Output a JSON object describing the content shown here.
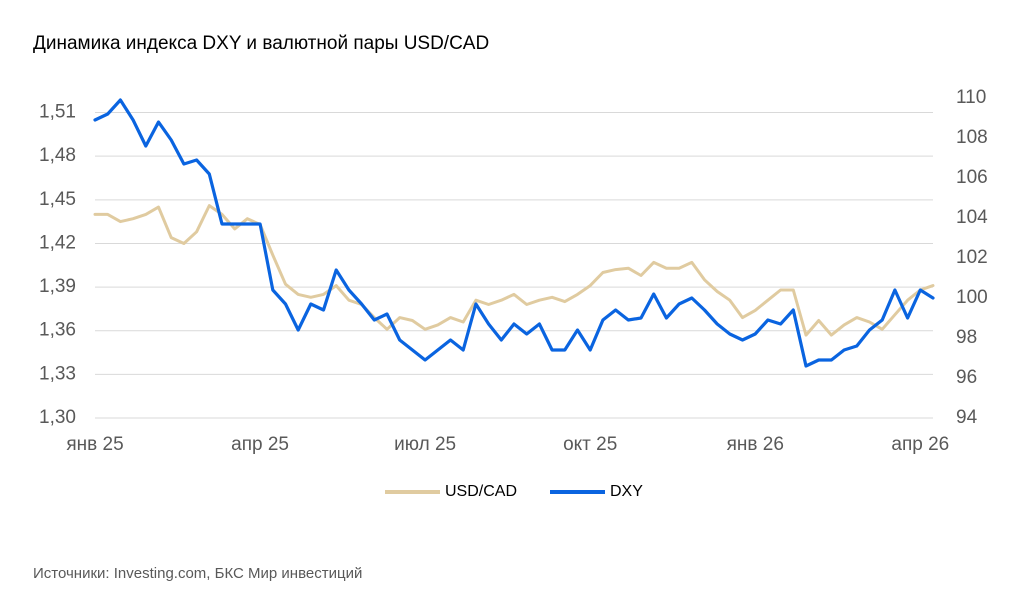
{
  "chart_data": {
    "type": "line",
    "title": "Динамика индекса DXY и валютной пары USD/CAD",
    "source": "Источники: Investing.com, БКС Мир инвестиций",
    "categories": [
      "янв 25",
      null,
      null,
      null,
      null,
      null,
      null,
      null,
      null,
      null,
      null,
      null,
      null,
      "апр 25",
      null,
      null,
      null,
      null,
      null,
      null,
      null,
      null,
      null,
      null,
      null,
      null,
      "июл 25",
      null,
      null,
      null,
      null,
      null,
      null,
      null,
      null,
      null,
      null,
      null,
      null,
      "окт 25",
      null,
      null,
      null,
      null,
      null,
      null,
      null,
      null,
      null,
      null,
      null,
      null,
      "янв 26",
      null,
      null,
      null,
      null,
      null,
      null,
      null,
      null,
      null,
      null,
      null,
      null,
      "апр 26",
      null
    ],
    "series": [
      {
        "name": "USD/CAD",
        "color": "#e0cba0",
        "axis": "y",
        "values": [
          1.44,
          1.44,
          1.435,
          1.437,
          1.44,
          1.445,
          1.424,
          1.42,
          1.428,
          1.446,
          1.44,
          1.43,
          1.437,
          1.433,
          1.412,
          1.392,
          1.385,
          1.383,
          1.385,
          1.391,
          1.381,
          1.378,
          1.369,
          1.361,
          1.369,
          1.367,
          1.361,
          1.364,
          1.369,
          1.366,
          1.381,
          1.378,
          1.381,
          1.385,
          1.378,
          1.381,
          1.383,
          1.38,
          1.385,
          1.391,
          1.4,
          1.402,
          1.403,
          1.398,
          1.407,
          1.403,
          1.403,
          1.407,
          1.395,
          1.387,
          1.381,
          1.369,
          1.374,
          1.381,
          1.388,
          1.388,
          1.357,
          1.367,
          1.357,
          1.364,
          1.369,
          1.366,
          1.361,
          1.371,
          1.381,
          1.388,
          1.391
        ]
      },
      {
        "name": "DXY",
        "color": "#0a64e0",
        "axis": "y2",
        "values": [
          108.9,
          109.2,
          109.9,
          108.9,
          107.6,
          108.8,
          107.9,
          106.7,
          106.9,
          106.2,
          103.7,
          103.7,
          103.7,
          103.7,
          100.4,
          99.7,
          98.4,
          99.7,
          99.4,
          101.4,
          100.4,
          99.7,
          98.9,
          99.2,
          97.9,
          97.4,
          96.9,
          97.4,
          97.9,
          97.4,
          99.7,
          98.7,
          97.9,
          98.7,
          98.2,
          98.7,
          97.4,
          97.4,
          98.4,
          97.4,
          98.9,
          99.4,
          98.9,
          99.0,
          100.2,
          99.0,
          99.7,
          100.0,
          99.4,
          98.7,
          98.2,
          97.9,
          98.2,
          98.9,
          98.7,
          99.4,
          96.6,
          96.9,
          96.9,
          97.4,
          97.6,
          98.4,
          98.9,
          100.4,
          99.0,
          100.4,
          100.0
        ]
      }
    ],
    "ylim": [
      1.3,
      1.52
    ],
    "yticks": [
      {
        "value": 1.3,
        "label": "1,30"
      },
      {
        "value": 1.33,
        "label": "1,33"
      },
      {
        "value": 1.36,
        "label": "1,36"
      },
      {
        "value": 1.39,
        "label": "1,39"
      },
      {
        "value": 1.42,
        "label": "1,42"
      },
      {
        "value": 1.45,
        "label": "1,45"
      },
      {
        "value": 1.48,
        "label": "1,48"
      },
      {
        "value": 1.51,
        "label": "1,51"
      }
    ],
    "y2lim": [
      94,
      110
    ],
    "y2ticks": [
      94,
      96,
      98,
      100,
      102,
      104,
      106,
      108,
      110
    ],
    "grid": true,
    "legend": "bottom"
  }
}
